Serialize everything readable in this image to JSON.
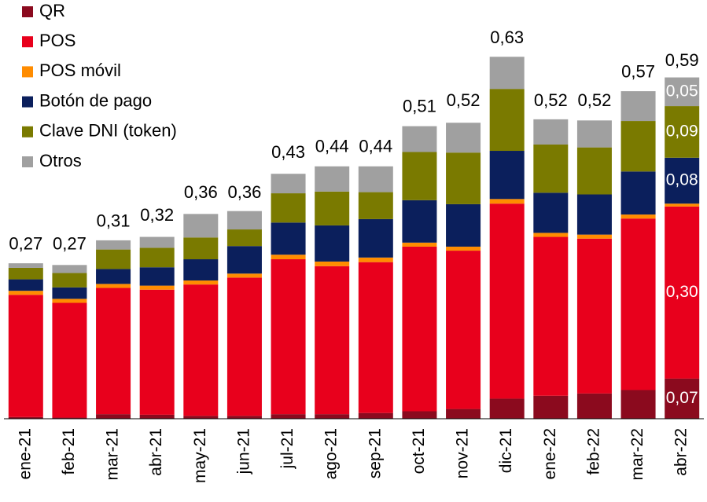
{
  "chart_data": {
    "type": "stacked_bar",
    "categories": [
      "ene-21",
      "feb-21",
      "mar-21",
      "abr-21",
      "may-21",
      "jun-21",
      "jul-21",
      "ago-21",
      "sep-21",
      "oct-21",
      "nov-21",
      "dic-21",
      "ene-22",
      "feb-22",
      "mar-22",
      "abr-22"
    ],
    "series": [
      {
        "name": "QR",
        "color": "#8b0a1e",
        "values": [
          0.003,
          0.002,
          0.008,
          0.007,
          0.005,
          0.005,
          0.008,
          0.008,
          0.01,
          0.013,
          0.017,
          0.035,
          0.04,
          0.044,
          0.05,
          0.07
        ],
        "value_labels": [
          null,
          null,
          null,
          null,
          null,
          null,
          null,
          null,
          null,
          null,
          null,
          null,
          null,
          null,
          null,
          "0,07"
        ]
      },
      {
        "name": "POS",
        "color": "#e8001c",
        "values": [
          0.213,
          0.2,
          0.22,
          0.218,
          0.229,
          0.241,
          0.27,
          0.258,
          0.263,
          0.287,
          0.276,
          0.34,
          0.277,
          0.27,
          0.299,
          0.3
        ],
        "value_labels": [
          null,
          null,
          null,
          null,
          null,
          null,
          null,
          null,
          null,
          null,
          null,
          null,
          null,
          null,
          null,
          "0,30"
        ]
      },
      {
        "name": "POS móvil",
        "color": "#ff8c00",
        "values": [
          0.007,
          0.007,
          0.007,
          0.007,
          0.007,
          0.007,
          0.008,
          0.008,
          0.008,
          0.007,
          0.007,
          0.008,
          0.007,
          0.007,
          0.007,
          0.005
        ]
      },
      {
        "name": "Botón de pago",
        "color": "#0b1f5c",
        "values": [
          0.02,
          0.02,
          0.026,
          0.032,
          0.037,
          0.048,
          0.056,
          0.063,
          0.067,
          0.074,
          0.074,
          0.084,
          0.07,
          0.07,
          0.075,
          0.08
        ],
        "value_labels": [
          null,
          null,
          null,
          null,
          null,
          null,
          null,
          null,
          null,
          null,
          null,
          null,
          null,
          null,
          null,
          "0,08"
        ]
      },
      {
        "name": "Clave DNI (token)",
        "color": "#7a7a00",
        "values": [
          0.02,
          0.025,
          0.034,
          0.034,
          0.038,
          0.029,
          0.051,
          0.059,
          0.047,
          0.084,
          0.09,
          0.108,
          0.084,
          0.082,
          0.088,
          0.09
        ],
        "value_labels": [
          null,
          null,
          null,
          null,
          null,
          null,
          null,
          null,
          null,
          null,
          null,
          null,
          null,
          null,
          null,
          "0,09"
        ]
      },
      {
        "name": "Otros",
        "color": "#a0a0a0",
        "values": [
          0.008,
          0.014,
          0.016,
          0.019,
          0.041,
          0.032,
          0.034,
          0.044,
          0.045,
          0.045,
          0.052,
          0.056,
          0.044,
          0.047,
          0.052,
          0.05
        ],
        "value_labels": [
          null,
          null,
          null,
          null,
          null,
          null,
          null,
          null,
          null,
          null,
          null,
          null,
          null,
          null,
          null,
          "0,05"
        ]
      }
    ],
    "totals": [
      0.27,
      0.27,
      0.31,
      0.32,
      0.36,
      0.36,
      0.43,
      0.44,
      0.44,
      0.51,
      0.52,
      0.63,
      0.52,
      0.52,
      0.57,
      0.59
    ],
    "total_labels": [
      "0,27",
      "0,27",
      "0,31",
      "0,32",
      "0,36",
      "0,36",
      "0,43",
      "0,44",
      "0,44",
      "0,51",
      "0,52",
      "0,63",
      "0,52",
      "0,52",
      "0,57",
      "0,59"
    ],
    "legend": "top-left"
  }
}
